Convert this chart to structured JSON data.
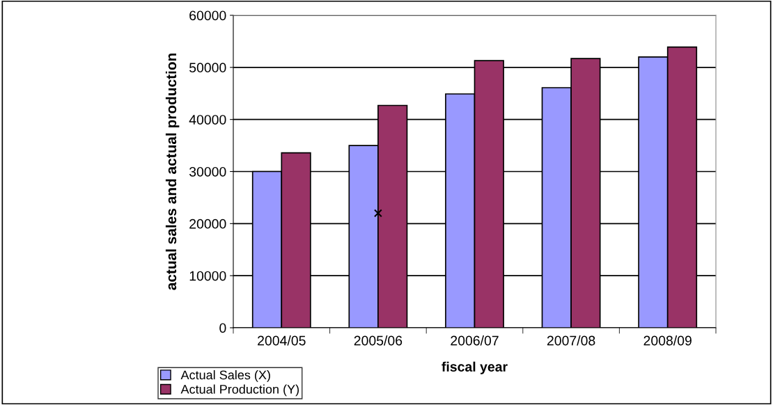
{
  "chart_data": {
    "type": "bar",
    "xlabel": "fiscal year",
    "ylabel": "actual sales and actual production",
    "categories": [
      "2004/05",
      "2005/06",
      "2006/07",
      "2007/08",
      "2008/09"
    ],
    "series": [
      {
        "name": "Actual Sales (X)",
        "color": "#9999ff",
        "values": [
          30000,
          35000,
          44900,
          46100,
          52000
        ]
      },
      {
        "name": "Actual Production (Y)",
        "color": "#993366",
        "values": [
          33600,
          42700,
          51300,
          51700,
          53900
        ]
      },
      {
        "type": "scatter",
        "x": [
          "2005/06"
        ],
        "color": "#000000",
        "values": [
          22000
        ],
        "marker": "cross"
      }
    ],
    "ylim": [
      0,
      60000
    ],
    "yticks": [
      0,
      10000,
      20000,
      30000,
      40000,
      50000,
      60000
    ],
    "grid": "y",
    "legend": "bottom left"
  }
}
